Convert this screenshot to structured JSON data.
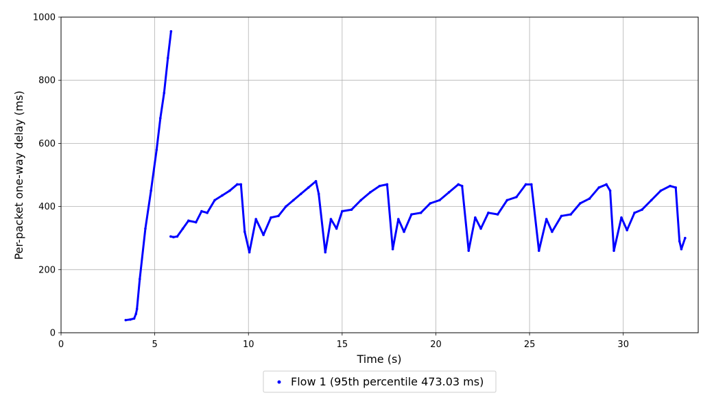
{
  "chart_data": {
    "type": "scatter",
    "title": "",
    "xlabel": "Time (s)",
    "ylabel": "Per-packet one-way delay (ms)",
    "xlim": [
      0,
      34
    ],
    "ylim": [
      0,
      1000
    ],
    "xticks": [
      0,
      5,
      10,
      15,
      20,
      25,
      30
    ],
    "xtick_labels": [
      "0",
      "5",
      "10",
      "15",
      "20",
      "25",
      "30"
    ],
    "yticks": [
      0,
      200,
      400,
      600,
      800,
      1000
    ],
    "ytick_labels": [
      "0",
      "200",
      "400",
      "600",
      "800",
      "1000"
    ],
    "grid": true,
    "legend_position": "bottom-center-outside",
    "series": [
      {
        "name": "Flow 1 (95th percentile 473.03 ms)",
        "color": "#0000ff",
        "segments": [
          {
            "x": [
              3.45,
              3.7,
              3.9,
              4.0,
              4.05,
              4.2,
              4.5,
              4.8,
              5.1,
              5.3,
              5.5,
              5.7,
              5.87
            ],
            "y": [
              40,
              42,
              45,
              60,
              75,
              170,
              330,
              450,
              580,
              680,
              760,
              870,
              955
            ]
          },
          {
            "x": [
              5.85,
              6.0,
              6.2,
              6.5,
              6.8,
              7.2,
              7.5,
              7.8,
              8.2,
              8.6,
              9.0,
              9.4,
              9.6,
              9.8,
              10.05,
              10.4,
              10.8,
              11.2,
              11.6,
              12.0,
              12.4,
              12.8,
              13.2,
              13.6,
              13.75,
              14.1,
              14.4,
              14.7,
              15.0,
              15.5,
              16.0,
              16.5,
              17.0,
              17.4,
              17.7,
              18.0,
              18.3,
              18.7,
              19.2,
              19.7,
              20.2,
              20.7,
              21.2,
              21.4,
              21.75,
              22.1,
              22.4,
              22.8,
              23.3,
              23.8,
              24.3,
              24.8,
              25.1,
              25.5,
              25.9,
              26.2,
              26.7,
              27.2,
              27.7,
              28.2,
              28.7,
              29.1,
              29.3,
              29.5,
              29.9,
              30.2,
              30.6,
              31.0,
              31.5,
              32.0,
              32.5,
              32.8,
              33.0,
              33.1,
              33.3
            ],
            "y": [
              305,
              303,
              305,
              330,
              355,
              350,
              385,
              380,
              420,
              435,
              450,
              470,
              470,
              320,
              255,
              360,
              310,
              365,
              370,
              400,
              420,
              440,
              460,
              480,
              440,
              255,
              360,
              330,
              385,
              390,
              420,
              445,
              465,
              470,
              265,
              360,
              320,
              375,
              380,
              410,
              420,
              445,
              470,
              465,
              260,
              365,
              330,
              380,
              375,
              420,
              430,
              470,
              470,
              260,
              360,
              320,
              370,
              375,
              410,
              425,
              460,
              470,
              450,
              260,
              365,
              325,
              380,
              390,
              420,
              450,
              465,
              460,
              290,
              265,
              300
            ]
          }
        ]
      }
    ]
  }
}
